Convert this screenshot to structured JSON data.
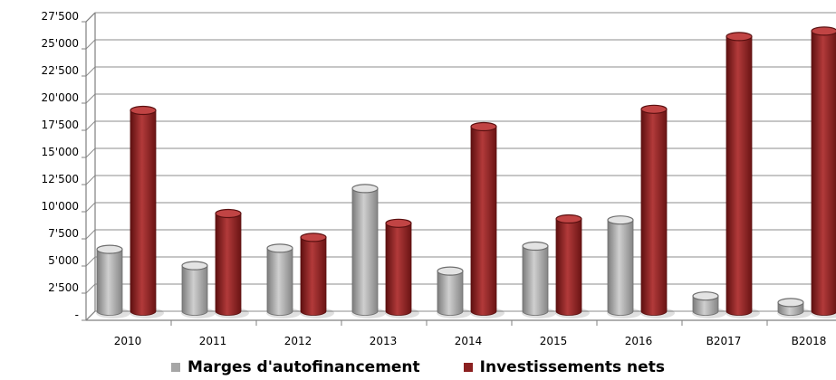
{
  "chart_data": {
    "type": "bar",
    "categories": [
      "2010",
      "2011",
      "2012",
      "2013",
      "2014",
      "2015",
      "2016",
      "B2017",
      "B2018"
    ],
    "series": [
      {
        "name": "Marges d'autofinancement",
        "color": "#a6a6a6",
        "values": [
          5700,
          4200,
          5800,
          11300,
          3700,
          6000,
          8400,
          1400,
          800
        ]
      },
      {
        "name": "Investissements nets",
        "color": "#8b2020",
        "values": [
          18500,
          9000,
          6800,
          8100,
          17000,
          8500,
          18600,
          25300,
          25800
        ]
      }
    ],
    "y_ticks": [
      "-",
      "2'500",
      "5'000",
      "7'500",
      "10'000",
      "12'500",
      "15'000",
      "17'500",
      "20'000",
      "22'500",
      "25'000",
      "27'500"
    ],
    "ylim": [
      0,
      27500
    ],
    "grid": true,
    "legend_position": "bottom"
  }
}
